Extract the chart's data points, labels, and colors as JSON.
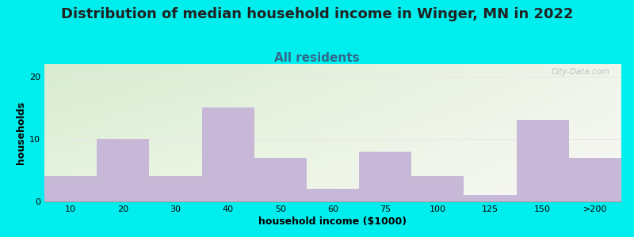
{
  "title": "Distribution of median household income in Winger, MN in 2022",
  "subtitle": "All residents",
  "xlabel": "household income ($1000)",
  "ylabel": "households",
  "categories": [
    "10",
    "20",
    "30",
    "40",
    "50",
    "60",
    "75",
    "100",
    "125",
    "150",
    ">200"
  ],
  "values": [
    4,
    10,
    4,
    15,
    7,
    2,
    8,
    4,
    1,
    13,
    7
  ],
  "bar_color": "#c8b8d8",
  "bar_edge_color": "#c8b8d8",
  "background_color": "#00eeee",
  "plot_bg_color_topleft": "#d8ecd0",
  "plot_bg_color_right": "#f5f5f0",
  "grid_color": "#e8e8e8",
  "title_fontsize": 13,
  "title_color": "#222222",
  "subtitle_fontsize": 11,
  "subtitle_color": "#336688",
  "axis_label_fontsize": 9,
  "tick_fontsize": 8,
  "ylim": [
    0,
    22
  ],
  "yticks": [
    0,
    10,
    20
  ],
  "watermark": "City-Data.com"
}
